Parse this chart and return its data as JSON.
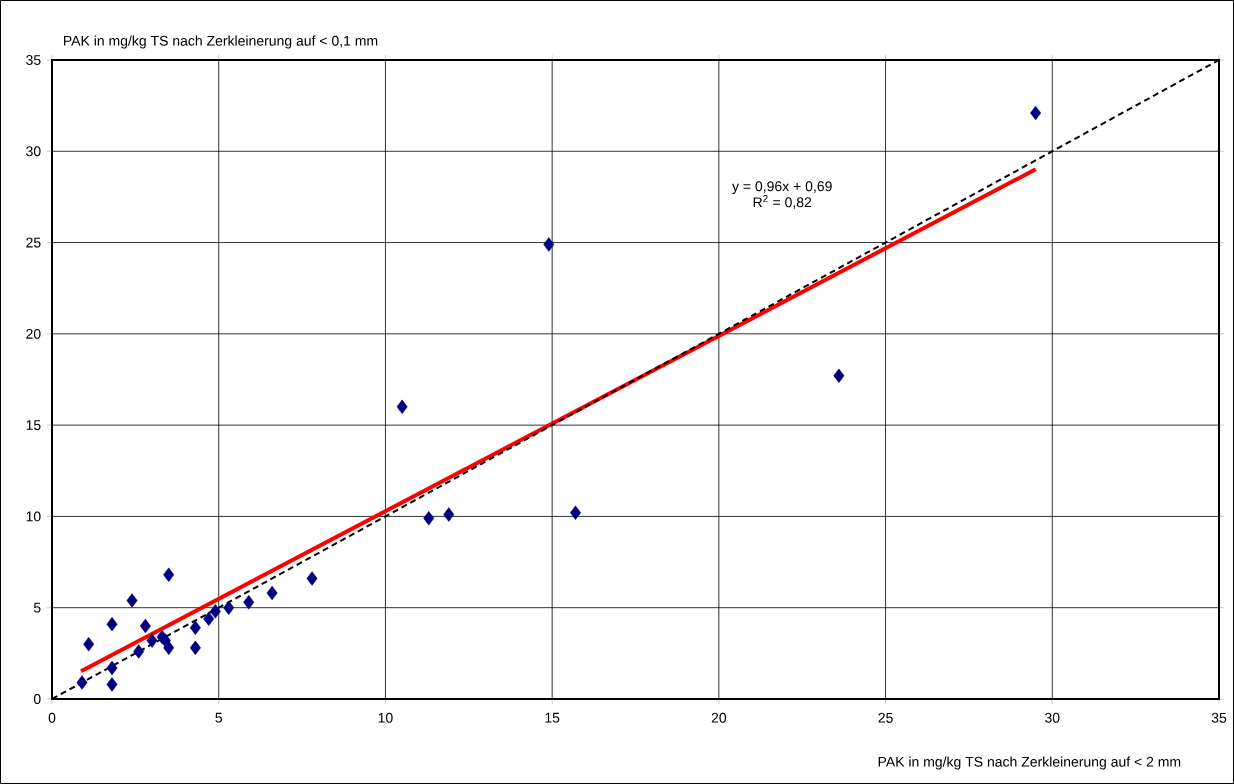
{
  "chart_data": {
    "type": "scatter",
    "xlabel": "PAK in mg/kg TS nach Zerkleinerung auf < 2 mm",
    "ylabel": "PAK in mg/kg TS nach Zerkleinerung auf < 0,1 mm",
    "annotations": [
      "y = 0,96x + 0,69",
      "R$^{2}$ = 0,82"
    ],
    "xlim": [
      0,
      35
    ],
    "ylim": [
      0,
      35
    ],
    "xticks": [
      0,
      5,
      10,
      15,
      20,
      25,
      30,
      35
    ],
    "yticks": [
      0,
      5,
      10,
      15,
      20,
      25,
      30,
      35
    ],
    "grid": true,
    "marker": "diamond",
    "series": [
      {
        "color": "#000080",
        "x": [
          0.9,
          1.1,
          1.8,
          1.8,
          1.8,
          2.4,
          2.6,
          2.8,
          3.0,
          3.3,
          3.4,
          3.5,
          3.5,
          4.3,
          4.3,
          4.7,
          4.9,
          5.3,
          5.9,
          6.6,
          7.8,
          10.5,
          11.3,
          11.9,
          15.7,
          14.9,
          23.6,
          29.5
        ],
        "values": [
          0.9,
          3.0,
          4.1,
          1.7,
          0.8,
          5.4,
          2.6,
          4.0,
          3.2,
          3.4,
          3.2,
          2.8,
          6.8,
          3.9,
          2.8,
          4.4,
          4.8,
          5.0,
          5.3,
          5.8,
          6.6,
          16.0,
          9.9,
          10.1,
          10.2,
          24.9,
          17.7,
          32.1
        ]
      },
      {
        "type": "line",
        "color": "#ff0000",
        "marker": "none",
        "line_style": "solid",
        "x": [
          0.87,
          29.5
        ],
        "values": [
          1.52,
          29.01
        ]
      },
      {
        "type": "line",
        "color": "#000000",
        "marker": "none",
        "line_style": "dashed",
        "x": [
          0,
          35
        ],
        "values": [
          0,
          35
        ]
      }
    ]
  }
}
